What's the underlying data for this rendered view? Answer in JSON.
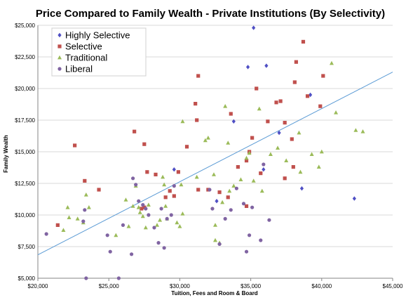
{
  "chart_data": {
    "type": "scatter",
    "title": "Price Compared to Family Wealth - Private Institutions (By Selectivity)",
    "xlabel": "Tuition, Fees and Room & Board",
    "ylabel": "Family Wealth",
    "xlim": [
      20000,
      45000
    ],
    "ylim": [
      5000,
      25000
    ],
    "x_ticks": [
      20000,
      25000,
      30000,
      35000,
      40000,
      45000
    ],
    "x_tick_labels": [
      "$20,000",
      "$25,000",
      "$30,000",
      "$35,000",
      "$40,000",
      "$45,000"
    ],
    "y_ticks": [
      5000,
      7500,
      10000,
      12500,
      15000,
      17500,
      20000,
      22500,
      25000
    ],
    "y_tick_labels": [
      "$5,000",
      "$7,500",
      "$10,000",
      "$12,500",
      "$15,000",
      "$17,500",
      "$20,000",
      "$22,500",
      "$25,000"
    ],
    "legend_position": "top-left",
    "trendline": {
      "type": "linear",
      "color": "#5b9bd5",
      "points": [
        [
          20000,
          6850
        ],
        [
          45000,
          21300
        ]
      ]
    },
    "series": [
      {
        "name": "Highly Selective",
        "color": "#4f4fc4",
        "marker": "diamond",
        "points": [
          [
            35200,
            24800
          ],
          [
            34800,
            21700
          ],
          [
            36100,
            21800
          ],
          [
            33800,
            17400
          ],
          [
            37000,
            16500
          ],
          [
            39200,
            19500
          ],
          [
            29600,
            13600
          ],
          [
            35900,
            13600
          ],
          [
            38600,
            12100
          ],
          [
            42300,
            11300
          ],
          [
            32600,
            11100
          ]
        ]
      },
      {
        "name": "Selective",
        "color": "#c0504d",
        "marker": "square",
        "points": [
          [
            22600,
            15500
          ],
          [
            21400,
            9200
          ],
          [
            23300,
            12700
          ],
          [
            24300,
            12000
          ],
          [
            26800,
            16600
          ],
          [
            27500,
            15600
          ],
          [
            27700,
            13400
          ],
          [
            28300,
            13200
          ],
          [
            29000,
            11400
          ],
          [
            29300,
            11900
          ],
          [
            29600,
            11500
          ],
          [
            29900,
            13400
          ],
          [
            30500,
            15400
          ],
          [
            31100,
            18800
          ],
          [
            31300,
            21000
          ],
          [
            31200,
            17500
          ],
          [
            32800,
            11800
          ],
          [
            33400,
            11400
          ],
          [
            33600,
            18000
          ],
          [
            34100,
            13800
          ],
          [
            34700,
            14300
          ],
          [
            34900,
            15000
          ],
          [
            35100,
            16100
          ],
          [
            35400,
            20000
          ],
          [
            35700,
            13300
          ],
          [
            36200,
            17400
          ],
          [
            36800,
            18900
          ],
          [
            37100,
            19000
          ],
          [
            37400,
            17300
          ],
          [
            37900,
            16000
          ],
          [
            38000,
            13800
          ],
          [
            38100,
            20500
          ],
          [
            38200,
            22100
          ],
          [
            38700,
            23700
          ],
          [
            39000,
            19400
          ],
          [
            39900,
            18600
          ],
          [
            40100,
            21000
          ],
          [
            37400,
            12900
          ],
          [
            34700,
            10700
          ],
          [
            31300,
            12000
          ],
          [
            32000,
            12000
          ],
          [
            27500,
            10600
          ],
          [
            27300,
            10500
          ]
        ]
      },
      {
        "name": "Traditional",
        "color": "#9bbb59",
        "marker": "triangle",
        "points": [
          [
            21800,
            8800
          ],
          [
            22100,
            10600
          ],
          [
            22200,
            9800
          ],
          [
            22800,
            9700
          ],
          [
            23400,
            11600
          ],
          [
            23600,
            10600
          ],
          [
            23200,
            9400
          ],
          [
            25500,
            8400
          ],
          [
            26200,
            11200
          ],
          [
            26700,
            10700
          ],
          [
            26900,
            12300
          ],
          [
            27100,
            10600
          ],
          [
            27200,
            10200
          ],
          [
            27400,
            9900
          ],
          [
            27600,
            9000
          ],
          [
            27800,
            10800
          ],
          [
            28400,
            9200
          ],
          [
            28600,
            9600
          ],
          [
            28900,
            12400
          ],
          [
            29000,
            10700
          ],
          [
            29100,
            9700
          ],
          [
            29800,
            9400
          ],
          [
            30100,
            12400
          ],
          [
            30000,
            9100
          ],
          [
            30200,
            17400
          ],
          [
            31200,
            13000
          ],
          [
            31800,
            15900
          ],
          [
            32000,
            16100
          ],
          [
            32400,
            13200
          ],
          [
            32500,
            8000
          ],
          [
            32800,
            7800
          ],
          [
            33000,
            11000
          ],
          [
            33200,
            18600
          ],
          [
            33400,
            15700
          ],
          [
            33500,
            11900
          ],
          [
            33800,
            12300
          ],
          [
            34300,
            12800
          ],
          [
            34700,
            14500
          ],
          [
            34900,
            14900
          ],
          [
            35200,
            12700
          ],
          [
            35600,
            18400
          ],
          [
            35800,
            11900
          ],
          [
            36400,
            14800
          ],
          [
            36900,
            15300
          ],
          [
            37500,
            14300
          ],
          [
            38400,
            16500
          ],
          [
            38500,
            13400
          ],
          [
            39300,
            14800
          ],
          [
            39800,
            13800
          ],
          [
            40000,
            15000
          ],
          [
            40700,
            22000
          ],
          [
            41000,
            18100
          ],
          [
            42400,
            16700
          ],
          [
            42900,
            16600
          ],
          [
            32500,
            9200
          ],
          [
            30200,
            10100
          ],
          [
            28800,
            13000
          ],
          [
            26400,
            9100
          ]
        ]
      },
      {
        "name": "Liberal",
        "color": "#8064a2",
        "marker": "circle",
        "points": [
          [
            20600,
            8500
          ],
          [
            23200,
            9500
          ],
          [
            23300,
            10400
          ],
          [
            23400,
            5000
          ],
          [
            24900,
            8400
          ],
          [
            25100,
            7100
          ],
          [
            25700,
            5000
          ],
          [
            26000,
            9200
          ],
          [
            26600,
            6900
          ],
          [
            26700,
            12900
          ],
          [
            26900,
            12400
          ],
          [
            27100,
            11100
          ],
          [
            27400,
            10800
          ],
          [
            27600,
            10500
          ],
          [
            27800,
            10000
          ],
          [
            28200,
            9000
          ],
          [
            28500,
            7800
          ],
          [
            28900,
            7400
          ],
          [
            28700,
            10500
          ],
          [
            29100,
            9700
          ],
          [
            29400,
            10000
          ],
          [
            29600,
            12300
          ],
          [
            32100,
            12000
          ],
          [
            32300,
            10500
          ],
          [
            32800,
            7700
          ],
          [
            33200,
            9700
          ],
          [
            33600,
            10400
          ],
          [
            34000,
            12100
          ],
          [
            34500,
            10900
          ],
          [
            34700,
            7100
          ],
          [
            34900,
            8400
          ],
          [
            35100,
            10600
          ],
          [
            35700,
            8000
          ],
          [
            35900,
            14000
          ],
          [
            36300,
            9600
          ]
        ]
      }
    ]
  }
}
